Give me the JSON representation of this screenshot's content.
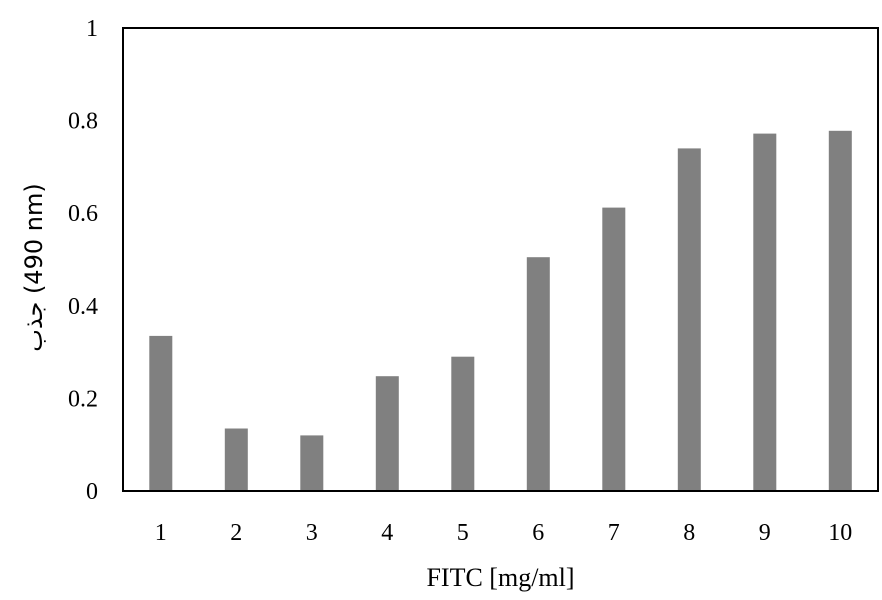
{
  "chart_data": {
    "type": "bar",
    "title": "",
    "xlabel": "FITC [mg/ml]",
    "ylabel": "جذب  (490 nm)",
    "categories": [
      "1",
      "2",
      "3",
      "4",
      "5",
      "6",
      "7",
      "8",
      "9",
      "10"
    ],
    "values": [
      0.335,
      0.135,
      0.12,
      0.248,
      0.29,
      0.505,
      0.612,
      0.74,
      0.772,
      0.778
    ],
    "ylim": [
      0,
      1
    ],
    "yticks": [
      "0",
      "0.2",
      "0.4",
      "0.6",
      "0.8",
      "1"
    ],
    "grid": false,
    "legend": "none",
    "bar_color": "#808080"
  }
}
